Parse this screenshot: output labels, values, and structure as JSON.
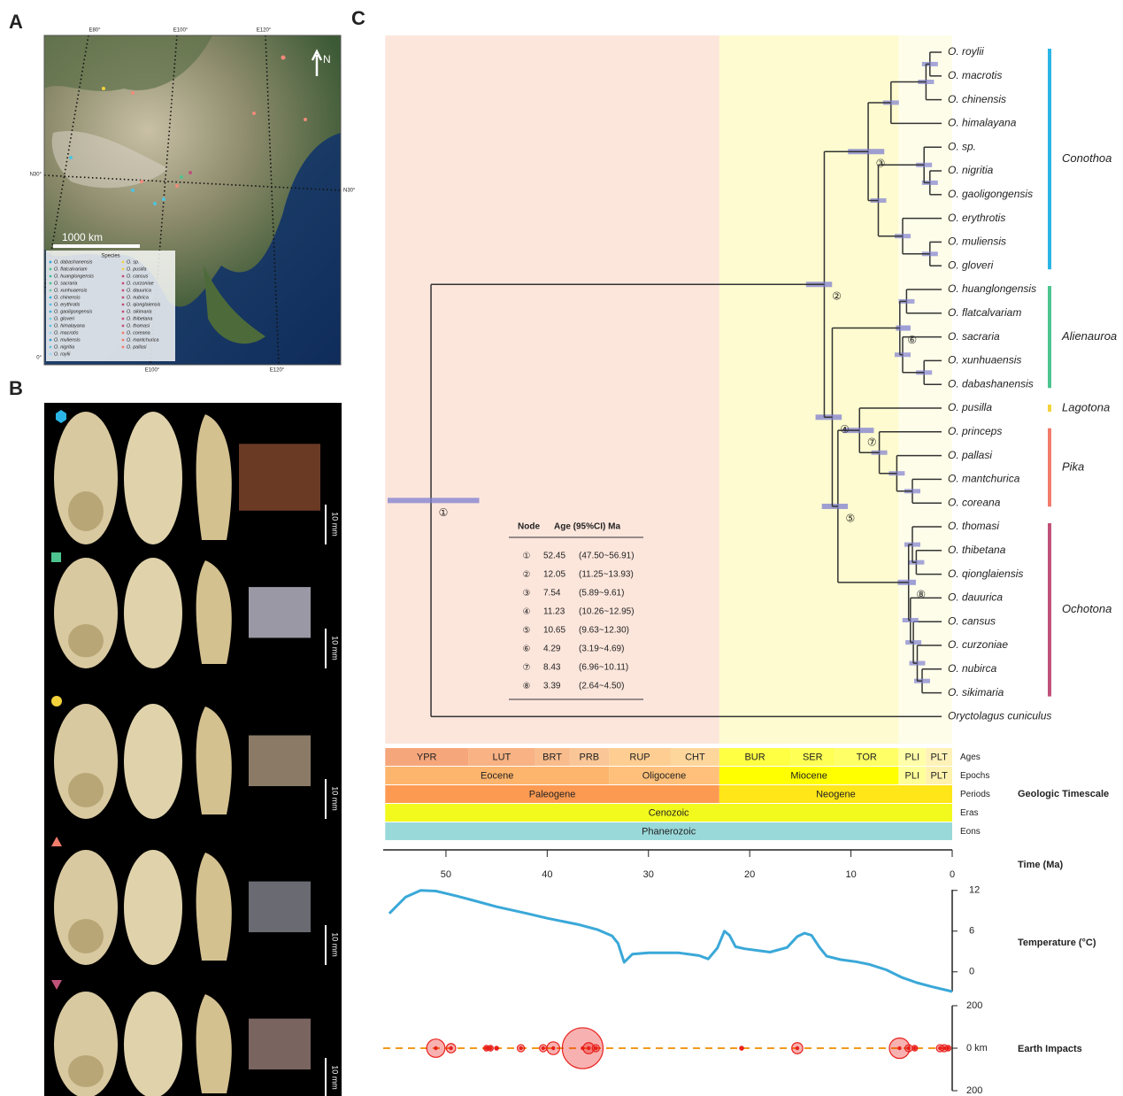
{
  "panels": {
    "a": "A",
    "b": "B",
    "c": "C"
  },
  "map": {
    "lon_top": [
      "E80°",
      "E100°",
      "E120°"
    ],
    "lon_bottom": [
      "E100°",
      "E120°"
    ],
    "lat_left": [
      "N30°",
      "0°"
    ],
    "lat_right": "N30°",
    "north": "N",
    "scale": "1000 km",
    "legend_title": "Species",
    "legend_left": [
      "O. dabashanensis",
      "O. flatcalvariam",
      "O. huanglongensis",
      "O. sacraria",
      "O. xunhuaensis",
      "O. chinensis",
      "O. erythrotis",
      "O. gaoligongensis",
      "O. gloveri",
      "O. himalayana",
      "O. macrotis",
      "O. muliensis",
      "O. nigritia",
      "O. roylii"
    ],
    "legend_right": [
      "O. sp.",
      "O. pusilla",
      "O. cansus",
      "O. curzoniae",
      "O. dauurica",
      "O. nubrica",
      "O. qionglaiensis",
      "O. sikimaria",
      "O. thibetana",
      "O. thomasi",
      "O. coreana",
      "O. mantchurica",
      "O. pallasi"
    ]
  },
  "specimens": {
    "scale": "10 mm"
  },
  "tree": {
    "leaves": [
      "O. roylii",
      "O. macrotis",
      "O. chinensis",
      "O. himalayana",
      "O. sp.",
      "O. nigritia",
      "O. gaoligongensis",
      "O. erythrotis",
      "O. muliensis",
      "O. gloveri",
      "O. huanglongensis",
      "O. flatcalvariam",
      "O. sacraria",
      "O. xunhuaensis",
      "O. dabashanensis",
      "O. pusilla",
      "O. princeps",
      "O. pallasi",
      "O. mantchurica",
      "O. coreana",
      "O. thomasi",
      "O. thibetana",
      "O. qionglaiensis",
      "O. dauurica",
      "O. cansus",
      "O. curzoniae",
      "O. nubirca",
      "O. sikimaria",
      "Oryctolagus cuniculus"
    ],
    "root": {
      "node": 0,
      "children": [
        {
          "node": 1,
          "children": [
            {
              "node": 2,
              "children": [
                {
                  "age": 5.2,
                  "children": [
                    {
                      "age": 1.6,
                      "children": [
                        {
                          "age": 1.2,
                          "children": [
                            0,
                            1
                          ]
                        },
                        2
                      ]
                    },
                    3
                  ]
                },
                {
                  "age": 6.5,
                  "children": [
                    {
                      "age": 1.8,
                      "children": [
                        4,
                        {
                          "age": 1.2,
                          "children": [
                            5,
                            6
                          ]
                        }
                      ]
                    },
                    {
                      "age": 4.0,
                      "children": [
                        7,
                        {
                          "age": 1.2,
                          "children": [
                            8,
                            9
                          ]
                        }
                      ]
                    }
                  ]
                }
              ]
            },
            {
              "node": 3,
              "children": [
                {
                  "node": 5,
                  "children": [
                    {
                      "age": 3.6,
                      "children": [
                        10,
                        11
                      ]
                    },
                    {
                      "age": 4.0,
                      "children": [
                        12,
                        {
                          "age": 1.8,
                          "children": [
                            13,
                            14
                          ]
                        }
                      ]
                    }
                  ]
                },
                {
                  "node": 4,
                  "children": [
                    {
                      "node": 6,
                      "children": [
                        15,
                        {
                          "age": 6.4,
                          "children": [
                            16,
                            {
                              "age": 4.6,
                              "children": [
                                17,
                                {
                                  "age": 3.0,
                                  "children": [
                                    18,
                                    19
                                  ]
                                }
                              ]
                            }
                          ]
                        }
                      ]
                    },
                    {
                      "node": 7,
                      "children": [
                        {
                          "age": 3.0,
                          "children": [
                            20,
                            {
                              "age": 2.6,
                              "children": [
                                21,
                                22
                              ]
                            }
                          ]
                        },
                        {
                          "age": 3.2,
                          "children": [
                            23,
                            {
                              "age": 2.9,
                              "children": [
                                24,
                                {
                                  "age": 2.5,
                                  "children": [
                                    25,
                                    {
                                      "age": 2.0,
                                      "children": [
                                        26,
                                        27
                                      ]
                                    }
                                  ]
                                }
                              ]
                            }
                          ]
                        }
                      ]
                    }
                  ]
                }
              ]
            }
          ]
        },
        28
      ]
    }
  },
  "clades": [
    {
      "name": "Conothoa",
      "from": 0,
      "to": 9,
      "color": "#2bb5e6"
    },
    {
      "name": "Alienauroa",
      "from": 10,
      "to": 14,
      "color": "#4ec490"
    },
    {
      "name": "Lagotona",
      "from": 15,
      "to": 15,
      "color": "#f3d23c"
    },
    {
      "name": "Pika",
      "from": 16,
      "to": 19,
      "color": "#f27c6c"
    },
    {
      "name": "Ochotona",
      "from": 20,
      "to": 27,
      "color": "#c0527a"
    }
  ],
  "node_table": {
    "header": [
      "Node",
      "Age (95%CI) Ma"
    ],
    "rows": [
      {
        "node": "①",
        "age": 52.45,
        "ci": [
          47.5,
          56.91
        ],
        "ci_label": "(47.50~56.91)"
      },
      {
        "node": "②",
        "age": 12.05,
        "ci": [
          11.25,
          13.93
        ],
        "ci_label": "(11.25~13.93)"
      },
      {
        "node": "③",
        "age": 7.54,
        "ci": [
          5.89,
          9.61
        ],
        "ci_label": "(5.89~9.61)"
      },
      {
        "node": "④",
        "age": 11.23,
        "ci": [
          10.26,
          12.95
        ],
        "ci_label": "(10.26~12.95)"
      },
      {
        "node": "⑤",
        "age": 10.65,
        "ci": [
          9.63,
          12.3
        ],
        "ci_label": "(9.63~12.30)"
      },
      {
        "node": "⑥",
        "age": 4.29,
        "ci": [
          3.19,
          4.69
        ],
        "ci_label": "(3.19~4.69)"
      },
      {
        "node": "⑦",
        "age": 8.43,
        "ci": [
          6.96,
          10.11
        ],
        "ci_label": "(6.96~10.11)"
      },
      {
        "node": "⑧",
        "age": 3.39,
        "ci": [
          2.64,
          4.5
        ],
        "ci_label": "(2.64~4.50)"
      }
    ]
  },
  "timescale": {
    "title": "Geologic Timescale",
    "rows": [
      {
        "name": "Ages",
        "units": [
          {
            "label": "YPR",
            "from": 56.0,
            "to": 47.8,
            "color": "#f6a67b"
          },
          {
            "label": "LUT",
            "from": 47.8,
            "to": 41.2,
            "color": "#f8b283"
          },
          {
            "label": "BRT",
            "from": 41.2,
            "to": 37.8,
            "color": "#f9bc8d"
          },
          {
            "label": "PRB",
            "from": 37.8,
            "to": 33.9,
            "color": "#fac697"
          },
          {
            "label": "RUP",
            "from": 33.9,
            "to": 27.8,
            "color": "#fdcd92"
          },
          {
            "label": "CHT",
            "from": 27.8,
            "to": 23.0,
            "color": "#fdd69c"
          },
          {
            "label": "BUR",
            "from": 23.0,
            "to": 15.97,
            "color": "#ffff44"
          },
          {
            "label": "SER",
            "from": 15.97,
            "to": 11.6,
            "color": "#ffff55"
          },
          {
            "label": "TOR",
            "from": 11.6,
            "to": 5.3,
            "color": "#ffff66"
          },
          {
            "label": "PLI",
            "from": 5.3,
            "to": 2.6,
            "color": "#ffffaa"
          },
          {
            "label": "PLT",
            "from": 2.6,
            "to": 0,
            "color": "#fff2b8"
          }
        ]
      },
      {
        "name": "Epochs",
        "units": [
          {
            "label": "Eocene",
            "from": 56.0,
            "to": 33.9,
            "color": "#fdb46c"
          },
          {
            "label": "Oligocene",
            "from": 33.9,
            "to": 23.0,
            "color": "#fec07a"
          },
          {
            "label": "Miocene",
            "from": 23.0,
            "to": 5.3,
            "color": "#ffff00"
          },
          {
            "label": "PLI",
            "from": 5.3,
            "to": 2.6,
            "color": "#ffff99"
          },
          {
            "label": "PLT",
            "from": 2.6,
            "to": 0,
            "color": "#fff2ae"
          }
        ]
      },
      {
        "name": "Periods",
        "units": [
          {
            "label": "Paleogene",
            "from": 56.0,
            "to": 23.0,
            "color": "#fd9a52"
          },
          {
            "label": "Neogene",
            "from": 23.0,
            "to": 0,
            "color": "#ffe619"
          }
        ]
      },
      {
        "name": "Eras",
        "units": [
          {
            "label": "Cenozoic",
            "from": 56.0,
            "to": 0,
            "color": "#f2f91d"
          }
        ]
      },
      {
        "name": "Eons",
        "units": [
          {
            "label": "Phanerozoic",
            "from": 56.0,
            "to": 0,
            "color": "#9ad9da"
          }
        ]
      }
    ]
  },
  "time_axis": {
    "label": "Time (Ma)",
    "xlim": [
      56.2,
      0
    ],
    "xticks": [
      50,
      40,
      30,
      20,
      10,
      0
    ]
  },
  "temperature": {
    "label": "Temperature (°C)",
    "color": "#3aa8d8",
    "ylim": [
      -2.9,
      12.1
    ],
    "yticks": [
      12,
      6,
      0
    ],
    "x": [
      55.6,
      54,
      52.5,
      51,
      49,
      47,
      45,
      42,
      40,
      37,
      35,
      33.6,
      33.0,
      32.4,
      31.6,
      30,
      27,
      25,
      24.1,
      23.2,
      22.5,
      22.0,
      21.4,
      20.5,
      18,
      16.3,
      15.3,
      14.6,
      13.9,
      13.1,
      12.4,
      11,
      9.5,
      8.2,
      6.5,
      5,
      3.5,
      2,
      0
    ],
    "values": [
      8.6,
      11,
      12,
      11.9,
      11.2,
      10.4,
      9.6,
      8.6,
      7.9,
      7,
      6.2,
      5.3,
      4.2,
      1.4,
      2.6,
      2.8,
      2.8,
      2.4,
      1.9,
      3.5,
      6,
      5.4,
      3.7,
      3.4,
      2.9,
      3.6,
      5.2,
      5.7,
      5.4,
      3.6,
      2.3,
      1.8,
      1.5,
      1.1,
      0.3,
      -0.8,
      -1.6,
      -2.2,
      -2.9
    ]
  },
  "impacts": {
    "label": "Earth Impacts",
    "color": "#e8201c",
    "line_color": "#f39a1e",
    "ylim": [
      -200,
      200
    ],
    "yticks": [
      200,
      {
        "value": 0,
        "label": "0 km"
      },
      {
        "value": -200,
        "label": "200"
      }
    ],
    "x": [
      51,
      49.5,
      46,
      45.6,
      45,
      42.6,
      40.4,
      39.4,
      36.5,
      35.9,
      35.2,
      20.8,
      15.3,
      5.2,
      4.3,
      3.7,
      1.2,
      0.8,
      0.4
    ],
    "values": [
      43,
      22,
      13,
      13,
      9,
      17,
      17,
      30,
      96,
      26,
      17,
      9,
      26,
      48,
      17,
      13,
      17,
      17,
      13
    ]
  }
}
